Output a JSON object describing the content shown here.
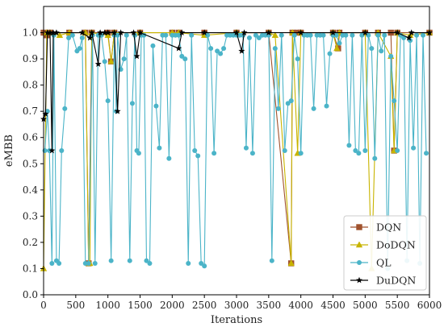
{
  "chart_data": {
    "type": "line",
    "xlabel": "Iterations",
    "ylabel": "eMBB",
    "xlim": [
      0,
      6000
    ],
    "ylim": [
      0,
      1.1
    ],
    "x_ticks": [
      0,
      500,
      1000,
      1500,
      2000,
      2500,
      3000,
      3500,
      4000,
      4500,
      5000,
      5500,
      6000
    ],
    "y_ticks": [
      0.0,
      0.1,
      0.2,
      0.3,
      0.4,
      0.5,
      0.6,
      0.7,
      0.8,
      0.9,
      1.0
    ],
    "grid": false,
    "legend_position": "lower-right",
    "series": [
      {
        "name": "DQN",
        "color": "#a0522d",
        "marker": "square",
        "x": [
          0,
          50,
          100,
          400,
          650,
          700,
          750,
          1000,
          1050,
          1100,
          1500,
          2000,
          2100,
          2500,
          3000,
          3500,
          3850,
          3870,
          3950,
          4000,
          4500,
          4580,
          4600,
          5000,
          5200,
          5400,
          5450,
          5500,
          6000
        ],
        "y": [
          1.0,
          0.99,
          1.0,
          1.0,
          1.0,
          0.12,
          1.0,
          1.0,
          0.89,
          1.0,
          1.0,
          1.0,
          1.0,
          1.0,
          1.0,
          1.0,
          0.12,
          1.0,
          1.0,
          1.0,
          1.0,
          0.94,
          1.0,
          1.0,
          1.0,
          1.0,
          0.55,
          1.0,
          1.0
        ]
      },
      {
        "name": "DoDQN",
        "color": "#c8b400",
        "marker": "triangle",
        "x": [
          0,
          50,
          100,
          250,
          400,
          650,
          700,
          720,
          750,
          1000,
          1050,
          1100,
          1500,
          2000,
          2100,
          2500,
          3000,
          3500,
          3600,
          3850,
          3870,
          3950,
          4000,
          4500,
          4560,
          4600,
          5000,
          5100,
          5200,
          5400,
          5450,
          5500,
          5700,
          6000
        ],
        "y": [
          0.1,
          1.0,
          1.0,
          0.99,
          1.0,
          1.0,
          0.12,
          0.12,
          1.0,
          0.99,
          0.89,
          1.0,
          1.0,
          1.0,
          1.0,
          0.99,
          1.0,
          1.0,
          0.99,
          0.12,
          1.0,
          0.54,
          1.0,
          1.0,
          0.94,
          1.0,
          1.0,
          0.1,
          1.0,
          0.91,
          0.55,
          1.0,
          0.99,
          1.0
        ]
      },
      {
        "name": "QL",
        "color": "#4bb4c8",
        "marker": "circle",
        "x": [
          20,
          60,
          90,
          130,
          160,
          200,
          240,
          280,
          330,
          390,
          450,
          520,
          560,
          600,
          650,
          700,
          760,
          800,
          850,
          900,
          950,
          1000,
          1050,
          1100,
          1130,
          1150,
          1200,
          1250,
          1290,
          1340,
          1380,
          1420,
          1450,
          1480,
          1520,
          1560,
          1600,
          1650,
          1700,
          1750,
          1800,
          1850,
          1900,
          1950,
          2000,
          2050,
          2100,
          2150,
          2200,
          2250,
          2300,
          2350,
          2400,
          2450,
          2500,
          2550,
          2600,
          2650,
          2700,
          2750,
          2800,
          2850,
          2900,
          2950,
          3000,
          3050,
          3100,
          3150,
          3200,
          3250,
          3300,
          3350,
          3400,
          3450,
          3500,
          3550,
          3600,
          3650,
          3700,
          3750,
          3800,
          3850,
          3900,
          3950,
          4000,
          4050,
          4100,
          4150,
          4200,
          4250,
          4300,
          4350,
          4400,
          4450,
          4500,
          4550,
          4600,
          4650,
          4700,
          4750,
          4800,
          4850,
          4900,
          4950,
          5000,
          5050,
          5100,
          5150,
          5200,
          5250,
          5300,
          5350,
          5400,
          5450,
          5500,
          5550,
          5600,
          5650,
          5700,
          5750,
          5800,
          5850,
          5900,
          5950
        ],
        "y": [
          0.55,
          0.7,
          0.55,
          0.12,
          0.99,
          0.13,
          0.12,
          0.55,
          0.71,
          0.98,
          0.99,
          0.93,
          0.94,
          0.98,
          0.12,
          0.12,
          0.99,
          0.12,
          0.99,
          0.99,
          0.89,
          0.74,
          0.13,
          0.99,
          0.7,
          0.99,
          0.86,
          0.9,
          0.99,
          0.13,
          0.73,
          0.99,
          0.55,
          0.54,
          0.99,
          0.99,
          0.13,
          0.12,
          0.95,
          0.72,
          0.56,
          0.99,
          0.99,
          0.52,
          0.99,
          0.99,
          0.99,
          0.91,
          0.9,
          0.12,
          0.99,
          0.55,
          0.53,
          0.12,
          0.11,
          0.99,
          0.94,
          0.54,
          0.93,
          0.92,
          0.94,
          0.99,
          0.99,
          0.99,
          0.99,
          0.99,
          0.99,
          0.56,
          0.98,
          0.54,
          0.99,
          0.98,
          0.99,
          0.99,
          0.99,
          0.13,
          0.94,
          0.71,
          0.99,
          0.55,
          0.73,
          0.74,
          0.99,
          0.9,
          0.54,
          0.99,
          0.99,
          0.99,
          0.71,
          0.99,
          0.99,
          0.99,
          0.72,
          0.92,
          0.99,
          0.99,
          0.96,
          0.99,
          0.99,
          0.57,
          0.99,
          0.55,
          0.54,
          0.99,
          0.55,
          0.99,
          0.94,
          0.52,
          0.99,
          0.93,
          0.99,
          0.1,
          0.91,
          0.74,
          0.55,
          0.99,
          0.98,
          0.13,
          0.97,
          0.56,
          0.99,
          0.12,
          0.99,
          0.54
        ]
      },
      {
        "name": "DuDQN",
        "color": "#000000",
        "marker": "star",
        "x": [
          0,
          30,
          60,
          100,
          130,
          150,
          200,
          600,
          720,
          750,
          850,
          880,
          950,
          1000,
          1100,
          1150,
          1200,
          1400,
          1450,
          1500,
          2100,
          2150,
          2500,
          3000,
          3080,
          3120,
          3500,
          4000,
          4500,
          5000,
          5500,
          5680,
          5720,
          6000
        ],
        "y": [
          0.67,
          0.69,
          1.0,
          1.0,
          0.55,
          1.0,
          1.0,
          1.0,
          0.98,
          1.0,
          0.88,
          1.0,
          1.0,
          1.0,
          1.0,
          0.7,
          1.0,
          1.0,
          0.91,
          1.0,
          0.94,
          1.0,
          1.0,
          1.0,
          0.93,
          1.0,
          1.0,
          1.0,
          1.0,
          1.0,
          1.0,
          0.98,
          1.0,
          1.0
        ]
      }
    ]
  }
}
